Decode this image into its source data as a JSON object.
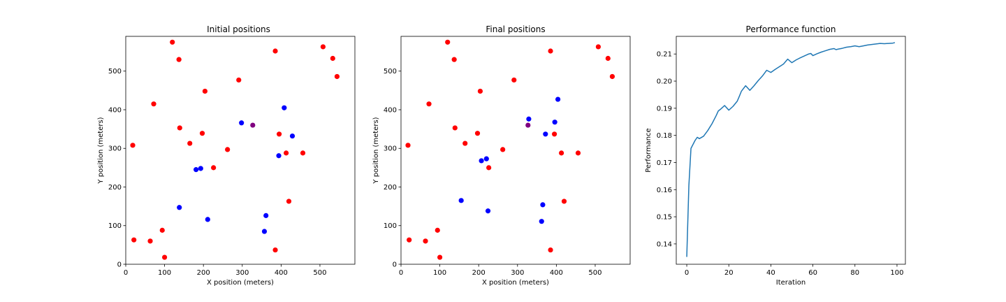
{
  "chart_data": [
    {
      "type": "scatter",
      "title": "Initial positions",
      "xlabel": "X position (meters)",
      "ylabel": "Y position (meters)",
      "xlim": [
        0,
        590
      ],
      "ylim": [
        0,
        590
      ],
      "xticks": [
        0,
        100,
        200,
        300,
        400,
        500
      ],
      "yticks": [
        0,
        100,
        200,
        300,
        400,
        500
      ],
      "grid": false,
      "colors": {
        "red": "#ff0000",
        "blue": "#0000ff",
        "purple": "#800080"
      },
      "points": [
        {
          "x": 120,
          "y": 575,
          "color": "red"
        },
        {
          "x": 137,
          "y": 530,
          "color": "red"
        },
        {
          "x": 72,
          "y": 415,
          "color": "red"
        },
        {
          "x": 204,
          "y": 448,
          "color": "red"
        },
        {
          "x": 291,
          "y": 477,
          "color": "red"
        },
        {
          "x": 385,
          "y": 552,
          "color": "red"
        },
        {
          "x": 508,
          "y": 563,
          "color": "red"
        },
        {
          "x": 533,
          "y": 533,
          "color": "red"
        },
        {
          "x": 544,
          "y": 486,
          "color": "red"
        },
        {
          "x": 18,
          "y": 308,
          "color": "red"
        },
        {
          "x": 139,
          "y": 353,
          "color": "red"
        },
        {
          "x": 165,
          "y": 313,
          "color": "red"
        },
        {
          "x": 197,
          "y": 339,
          "color": "red"
        },
        {
          "x": 262,
          "y": 297,
          "color": "red"
        },
        {
          "x": 226,
          "y": 250,
          "color": "red"
        },
        {
          "x": 395,
          "y": 337,
          "color": "red"
        },
        {
          "x": 413,
          "y": 288,
          "color": "red"
        },
        {
          "x": 456,
          "y": 288,
          "color": "red"
        },
        {
          "x": 420,
          "y": 163,
          "color": "red"
        },
        {
          "x": 21,
          "y": 63,
          "color": "red"
        },
        {
          "x": 63,
          "y": 60,
          "color": "red"
        },
        {
          "x": 94,
          "y": 88,
          "color": "red"
        },
        {
          "x": 100,
          "y": 18,
          "color": "red"
        },
        {
          "x": 385,
          "y": 37,
          "color": "red"
        },
        {
          "x": 298,
          "y": 366,
          "color": "blue"
        },
        {
          "x": 408,
          "y": 405,
          "color": "blue"
        },
        {
          "x": 429,
          "y": 332,
          "color": "blue"
        },
        {
          "x": 394,
          "y": 281,
          "color": "blue"
        },
        {
          "x": 181,
          "y": 245,
          "color": "blue"
        },
        {
          "x": 193,
          "y": 248,
          "color": "blue"
        },
        {
          "x": 138,
          "y": 147,
          "color": "blue"
        },
        {
          "x": 211,
          "y": 116,
          "color": "blue"
        },
        {
          "x": 361,
          "y": 126,
          "color": "blue"
        },
        {
          "x": 357,
          "y": 85,
          "color": "blue"
        },
        {
          "x": 327,
          "y": 360,
          "color": "purple"
        }
      ]
    },
    {
      "type": "scatter",
      "title": "Final positions",
      "xlabel": "X position (meters)",
      "ylabel": "Y position (meters)",
      "xlim": [
        0,
        590
      ],
      "ylim": [
        0,
        590
      ],
      "xticks": [
        0,
        100,
        200,
        300,
        400,
        500
      ],
      "yticks": [
        0,
        100,
        200,
        300,
        400,
        500
      ],
      "grid": false,
      "colors": {
        "red": "#ff0000",
        "blue": "#0000ff",
        "purple": "#800080"
      },
      "points": [
        {
          "x": 120,
          "y": 575,
          "color": "red"
        },
        {
          "x": 137,
          "y": 530,
          "color": "red"
        },
        {
          "x": 72,
          "y": 415,
          "color": "red"
        },
        {
          "x": 204,
          "y": 448,
          "color": "red"
        },
        {
          "x": 291,
          "y": 477,
          "color": "red"
        },
        {
          "x": 385,
          "y": 552,
          "color": "red"
        },
        {
          "x": 508,
          "y": 563,
          "color": "red"
        },
        {
          "x": 533,
          "y": 533,
          "color": "red"
        },
        {
          "x": 544,
          "y": 486,
          "color": "red"
        },
        {
          "x": 18,
          "y": 308,
          "color": "red"
        },
        {
          "x": 139,
          "y": 353,
          "color": "red"
        },
        {
          "x": 165,
          "y": 313,
          "color": "red"
        },
        {
          "x": 197,
          "y": 339,
          "color": "red"
        },
        {
          "x": 262,
          "y": 297,
          "color": "red"
        },
        {
          "x": 226,
          "y": 250,
          "color": "red"
        },
        {
          "x": 395,
          "y": 337,
          "color": "red"
        },
        {
          "x": 413,
          "y": 288,
          "color": "red"
        },
        {
          "x": 456,
          "y": 288,
          "color": "red"
        },
        {
          "x": 420,
          "y": 163,
          "color": "red"
        },
        {
          "x": 21,
          "y": 63,
          "color": "red"
        },
        {
          "x": 63,
          "y": 60,
          "color": "red"
        },
        {
          "x": 94,
          "y": 88,
          "color": "red"
        },
        {
          "x": 100,
          "y": 18,
          "color": "red"
        },
        {
          "x": 385,
          "y": 37,
          "color": "red"
        },
        {
          "x": 329,
          "y": 376,
          "color": "blue"
        },
        {
          "x": 404,
          "y": 427,
          "color": "blue"
        },
        {
          "x": 396,
          "y": 368,
          "color": "blue"
        },
        {
          "x": 372,
          "y": 337,
          "color": "blue"
        },
        {
          "x": 207,
          "y": 268,
          "color": "blue"
        },
        {
          "x": 220,
          "y": 273,
          "color": "blue"
        },
        {
          "x": 155,
          "y": 165,
          "color": "blue"
        },
        {
          "x": 224,
          "y": 138,
          "color": "blue"
        },
        {
          "x": 365,
          "y": 154,
          "color": "blue"
        },
        {
          "x": 362,
          "y": 111,
          "color": "blue"
        },
        {
          "x": 327,
          "y": 360,
          "color": "purple"
        }
      ]
    },
    {
      "type": "line",
      "title": "Performance function",
      "xlabel": "Iteration",
      "ylabel": "Performance",
      "xlim": [
        -5,
        104
      ],
      "ylim": [
        0.1325,
        0.2165
      ],
      "xticks": [
        0,
        20,
        40,
        60,
        80,
        100
      ],
      "yticks": [
        0.14,
        0.15,
        0.16,
        0.17,
        0.18,
        0.19,
        0.2,
        0.21
      ],
      "ytick_labels": [
        "0.14",
        "0.15",
        "0.16",
        "0.17",
        "0.18",
        "0.19",
        "0.20",
        "0.21"
      ],
      "grid": false,
      "line_color": "#1f77b4",
      "series": [
        {
          "x": [
            0,
            1,
            2,
            4,
            5,
            6,
            8,
            10,
            12,
            14,
            15,
            16,
            18,
            20,
            22,
            24,
            25,
            26,
            28,
            30,
            32,
            34,
            36,
            38,
            40,
            42,
            44,
            46,
            47,
            48,
            50,
            52,
            54,
            56,
            58,
            59,
            60,
            62,
            64,
            66,
            68,
            70,
            71,
            72,
            74,
            76,
            78,
            80,
            82,
            84,
            86,
            88,
            90,
            92,
            94,
            96,
            98,
            99
          ],
          "y": [
            0.1352,
            0.1615,
            0.1752,
            0.1782,
            0.1793,
            0.1788,
            0.1797,
            0.1818,
            0.1843,
            0.1873,
            0.189,
            0.1896,
            0.191,
            0.1893,
            0.1907,
            0.1926,
            0.1944,
            0.1963,
            0.1983,
            0.1966,
            0.1983,
            0.2002,
            0.2019,
            0.204,
            0.2032,
            0.2043,
            0.2053,
            0.2063,
            0.2072,
            0.2081,
            0.2068,
            0.2078,
            0.2086,
            0.2093,
            0.21,
            0.2102,
            0.2094,
            0.2101,
            0.2107,
            0.2112,
            0.2117,
            0.212,
            0.2116,
            0.2118,
            0.2121,
            0.2125,
            0.2127,
            0.213,
            0.2127,
            0.213,
            0.2133,
            0.2135,
            0.2137,
            0.2139,
            0.2138,
            0.2139,
            0.214,
            0.2142
          ]
        }
      ]
    }
  ]
}
